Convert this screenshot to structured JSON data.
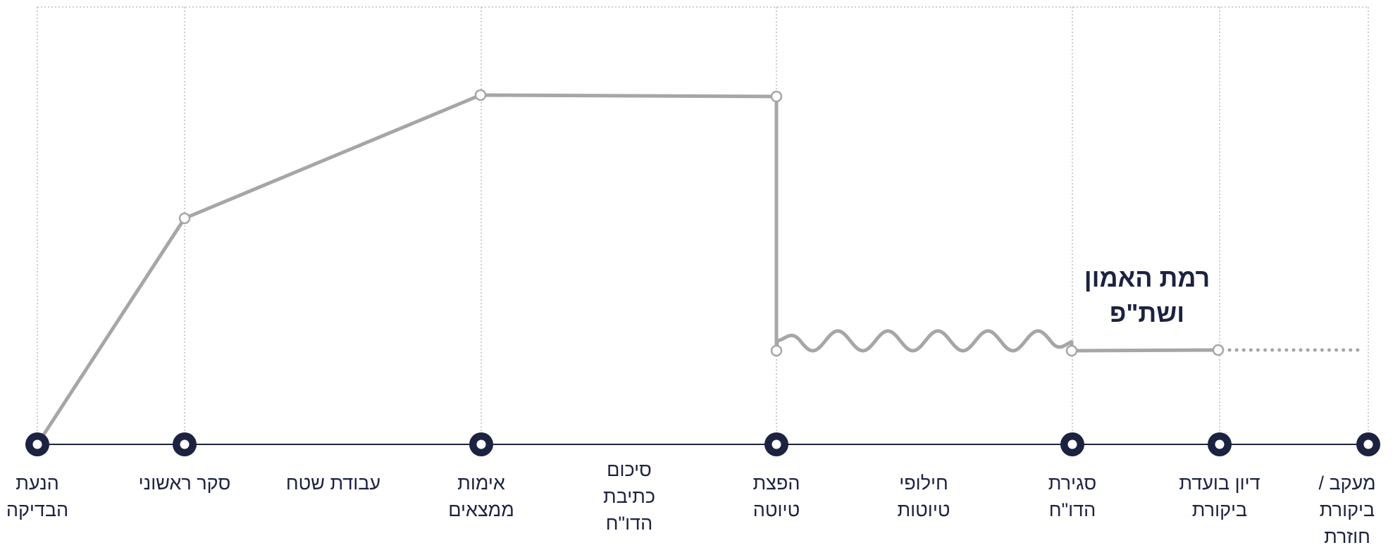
{
  "colors": {
    "navy": "#1c2340",
    "trust_line": "#a6a6a6",
    "grid": "#bdbdbd"
  },
  "annotation": {
    "line1": "רמת האמון",
    "line2": "ושת\"פ"
  },
  "milestones": [
    {
      "lines": [
        "הנעת",
        "הבדיקה"
      ]
    },
    {
      "lines": [
        "סקר ראשוני"
      ]
    },
    {
      "lines": [
        "אימות",
        "ממצאים"
      ]
    },
    {
      "lines": [
        "הפצת",
        "טיוטה"
      ]
    },
    {
      "lines": [
        "סגירת",
        "הדו\"ח"
      ]
    },
    {
      "lines": [
        "דיון בועדת",
        "ביקורת"
      ]
    },
    {
      "lines": [
        "מעקב /",
        "ביקורת",
        "חוזרת"
      ]
    }
  ],
  "phases": [
    {
      "lines": [
        "עבודת שטח"
      ]
    },
    {
      "lines": [
        "סיכום",
        "כתיבת",
        "הדו\"ח"
      ]
    },
    {
      "lines": [
        "חילופי",
        "טיוטות"
      ]
    }
  ]
}
